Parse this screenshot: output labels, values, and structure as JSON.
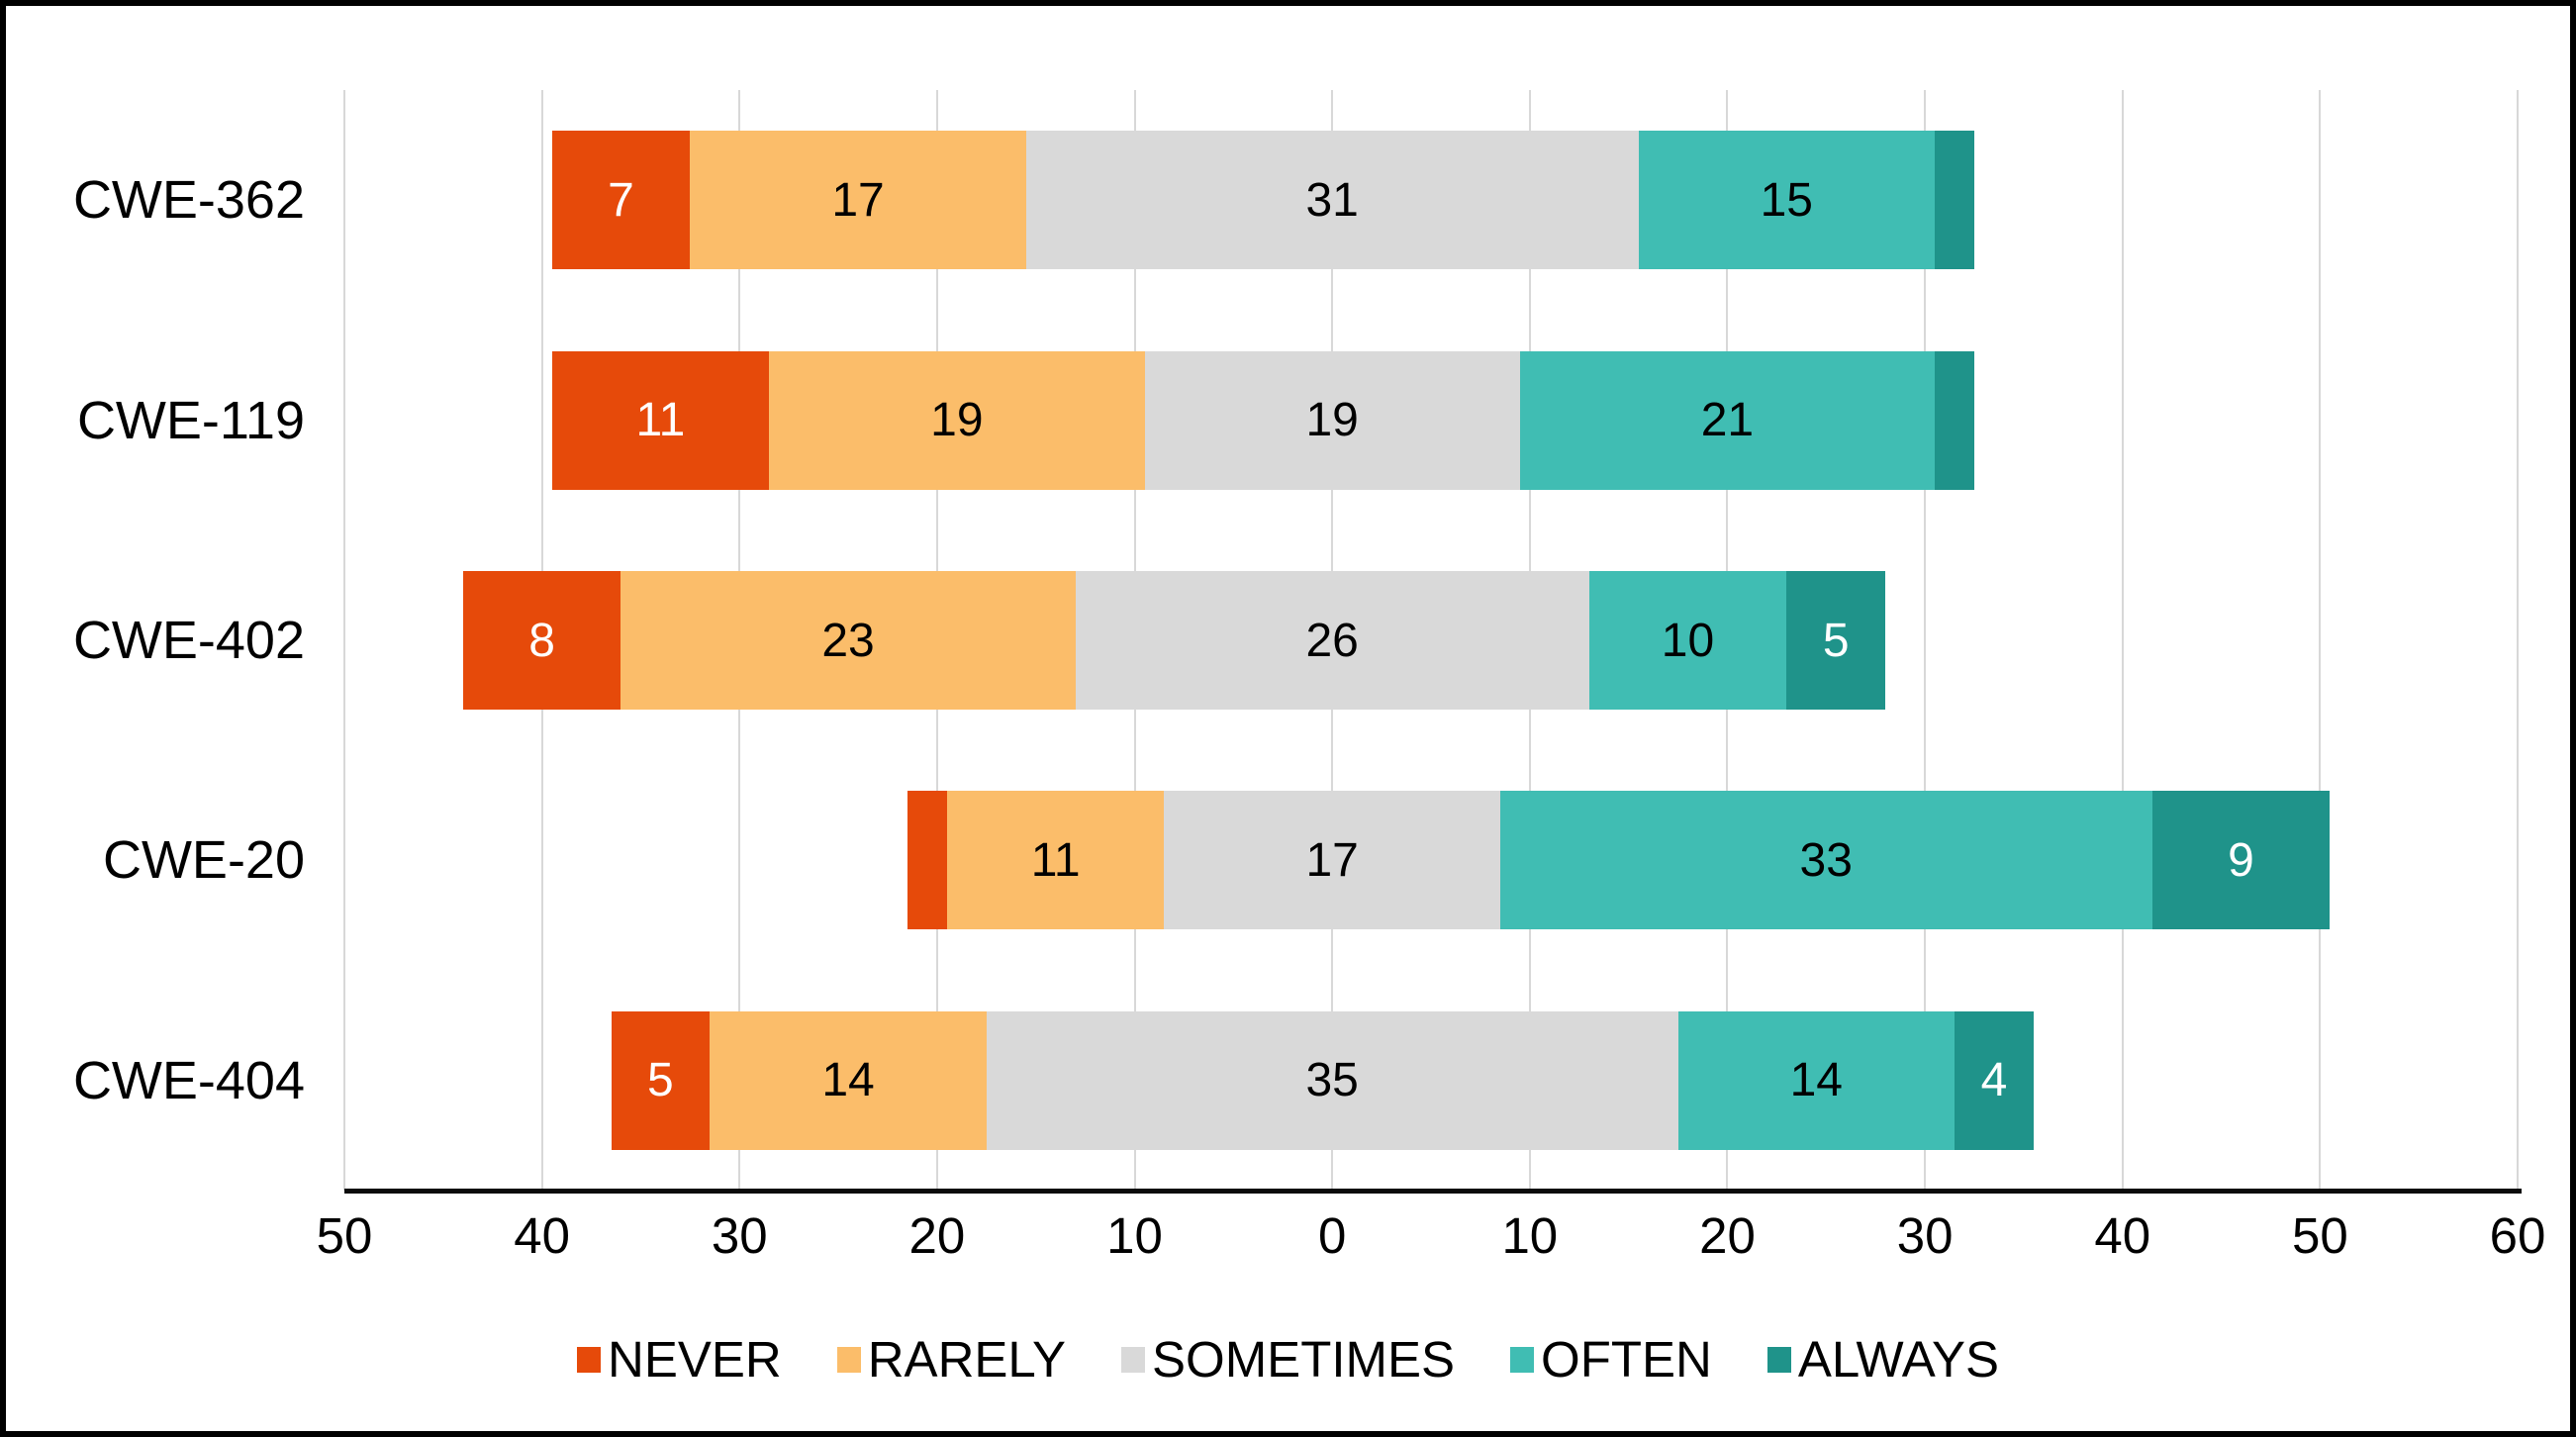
{
  "chart_data": {
    "type": "bar",
    "variant": "diverging-stacked-horizontal",
    "title": "",
    "xlabel": "",
    "ylabel": "",
    "categories": [
      "CWE-362",
      "CWE-119",
      "CWE-402",
      "CWE-20",
      "CWE-404"
    ],
    "series": [
      {
        "name": "NEVER",
        "color": "#e64a0a",
        "label_color": "#ffffff",
        "values": [
          7,
          11,
          8,
          2,
          5
        ]
      },
      {
        "name": "RARELY",
        "color": "#fbbd6a",
        "label_color": "#000000",
        "values": [
          17,
          19,
          23,
          11,
          14
        ]
      },
      {
        "name": "SOMETIMES",
        "color": "#d9d9d9",
        "label_color": "#000000",
        "values": [
          31,
          19,
          26,
          17,
          35
        ]
      },
      {
        "name": "OFTEN",
        "color": "#40bdb3",
        "label_color": "#000000",
        "values": [
          15,
          21,
          10,
          33,
          14
        ]
      },
      {
        "name": "ALWAYS",
        "color": "#1f938a",
        "label_color": "#ffffff",
        "values": [
          2,
          2,
          5,
          9,
          4
        ]
      }
    ],
    "center_series": "SOMETIMES",
    "axis_units_range": [
      -50,
      60
    ],
    "x_tick_step": 10,
    "x_tick_labels": [
      "50",
      "40",
      "30",
      "20",
      "10",
      "0",
      "10",
      "20",
      "30",
      "40",
      "50",
      "60"
    ],
    "min_value_for_label": 3,
    "grid": true,
    "gridline_color": "#d8d8d8",
    "axis_line_color": "#0b0b0b",
    "legend_position": "bottom",
    "legend_labels": [
      "NEVER",
      "RARELY",
      "SOMETIMES",
      "OFTEN",
      "ALWAYS"
    ]
  }
}
